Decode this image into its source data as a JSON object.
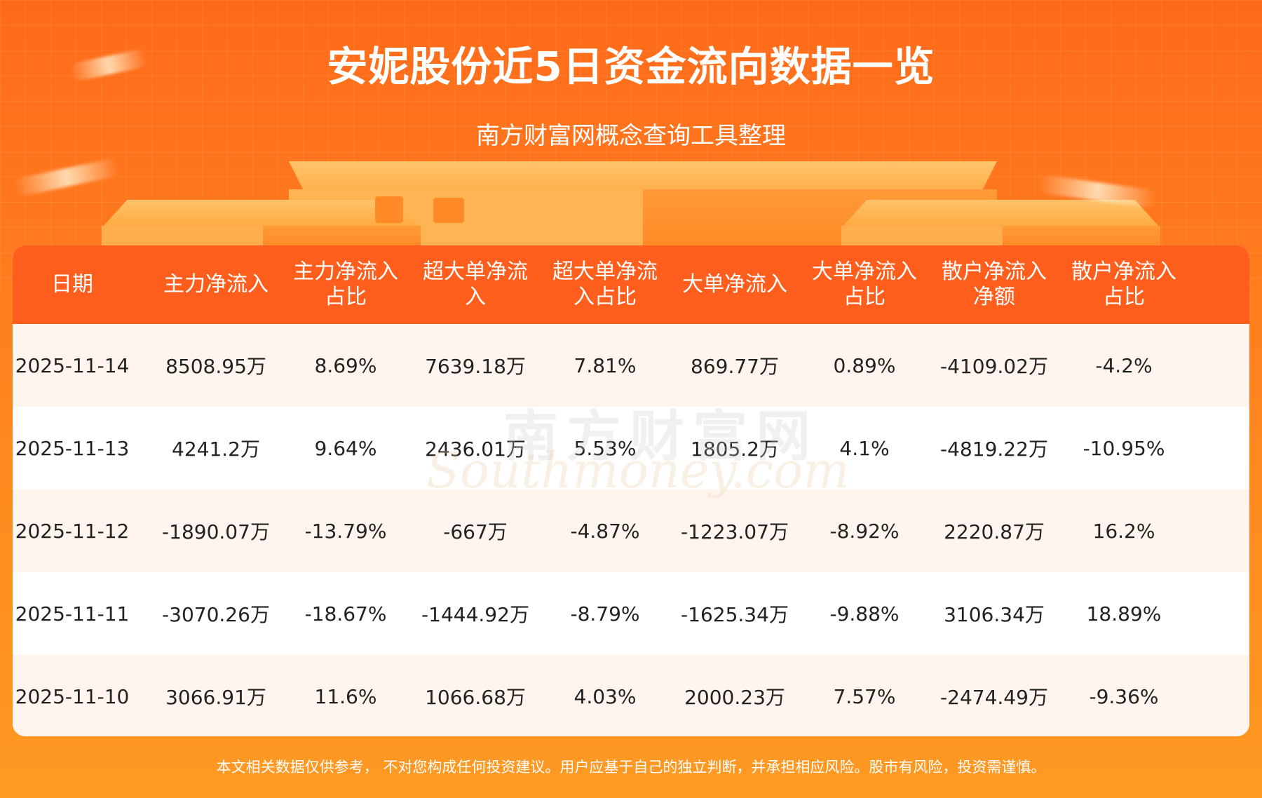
{
  "header": {
    "title": "安妮股份近5日资金流向数据一览",
    "subtitle": "南方财富网概念查询工具整理"
  },
  "table": {
    "columns": [
      "日期",
      "主力净流入",
      "主力净流入\n占比",
      "超大单净流\n入",
      "超大单净流\n入占比",
      "大单净流入",
      "大单净流入\n占比",
      "散户净流入\n净额",
      "散户净流入\n占比"
    ],
    "rows": [
      [
        "2025-11-14",
        "8508.95万",
        "8.69%",
        "7639.18万",
        "7.81%",
        "869.77万",
        "0.89%",
        "-4109.02万",
        "-4.2%"
      ],
      [
        "2025-11-13",
        "4241.2万",
        "9.64%",
        "2436.01万",
        "5.53%",
        "1805.2万",
        "4.1%",
        "-4819.22万",
        "-10.95%"
      ],
      [
        "2025-11-12",
        "-1890.07万",
        "-13.79%",
        "-667万",
        "-4.87%",
        "-1223.07万",
        "-8.92%",
        "2220.87万",
        "16.2%"
      ],
      [
        "2025-11-11",
        "-3070.26万",
        "-18.67%",
        "-1444.92万",
        "-8.79%",
        "-1625.34万",
        "-9.88%",
        "3106.34万",
        "18.89%"
      ],
      [
        "2025-11-10",
        "3066.91万",
        "11.6%",
        "1066.68万",
        "4.03%",
        "2000.23万",
        "7.57%",
        "-2474.49万",
        "-9.36%"
      ]
    ]
  },
  "watermark": {
    "cn": "南方财富网",
    "en": "Southmoney.com"
  },
  "footer": {
    "disclaimer": "本文相关数据仅供参考， 不对您构成任何投资建议。用户应基于自己的独立判断，并承担相应风险。股市有风险，投资需谨慎。"
  },
  "colors": {
    "header_bg": "#ff5e1c",
    "row_alt_bg": "#fff5ee",
    "page_bg": "#ff7a1e"
  }
}
